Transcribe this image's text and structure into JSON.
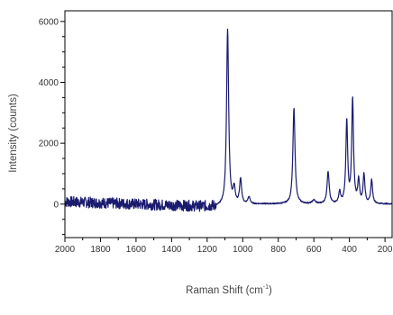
{
  "chart_data": {
    "type": "line",
    "title": "",
    "xlabel_main": "Raman Shift (cm",
    "xlabel_sup": "-1",
    "xlabel_end": ")",
    "ylabel": "Intensity (counts)",
    "xlim": [
      2000,
      160
    ],
    "ylim": [
      -1100,
      6350
    ],
    "x_reversed": true,
    "grid": false,
    "legend": "none",
    "x_ticks": [
      2000,
      1800,
      1600,
      1400,
      1200,
      1000,
      800,
      600,
      400,
      200
    ],
    "x_tick_labels": [
      "2000",
      "1800",
      "1600",
      "1400",
      "1200",
      "1000",
      "800",
      "600",
      "400",
      "200"
    ],
    "y_ticks": [
      0,
      2000,
      4000,
      6000
    ],
    "y_tick_labels": [
      "0",
      "2000",
      "4000",
      "6000"
    ],
    "series": [
      {
        "color": "#1a1a6e",
        "baseline": {
          "x_start": 2000,
          "x_end": 1150,
          "y_start": 80,
          "y_end": -90,
          "noise_amplitude": 180
        },
        "peaks": [
          {
            "x": 1085,
            "height": 5800,
            "width": 7
          },
          {
            "x": 1048,
            "height": 520,
            "width": 7
          },
          {
            "x": 1012,
            "height": 820,
            "width": 7
          },
          {
            "x": 965,
            "height": 230,
            "width": 8
          },
          {
            "x": 712,
            "height": 3150,
            "width": 7
          },
          {
            "x": 600,
            "height": 120,
            "width": 10
          },
          {
            "x": 520,
            "height": 1050,
            "width": 7
          },
          {
            "x": 455,
            "height": 380,
            "width": 6
          },
          {
            "x": 415,
            "height": 2700,
            "width": 6
          },
          {
            "x": 382,
            "height": 3400,
            "width": 6
          },
          {
            "x": 348,
            "height": 750,
            "width": 6
          },
          {
            "x": 318,
            "height": 950,
            "width": 6
          },
          {
            "x": 275,
            "height": 780,
            "width": 6
          }
        ]
      }
    ]
  }
}
